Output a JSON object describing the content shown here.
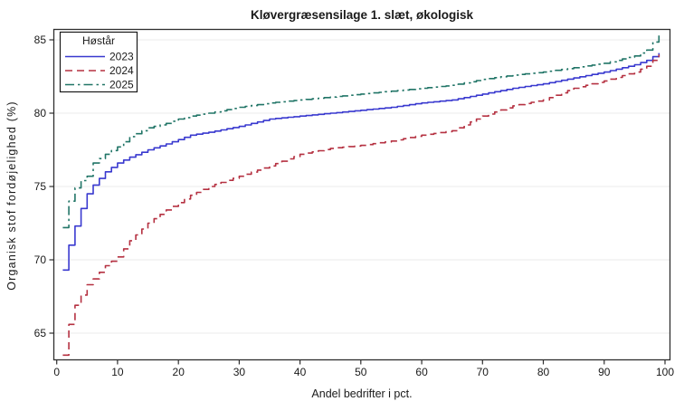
{
  "title": "Kløvergræsensilage 1. slæt, økologisk",
  "chart_data": {
    "type": "line",
    "title": "Kløvergræsensilage 1. slæt, økologisk",
    "xlabel": "Andel bedrifter i pct.",
    "ylabel": "Organisk stof fordøjelighed (%)",
    "xlim": [
      0,
      100
    ],
    "ylim": [
      63.2,
      85.7
    ],
    "x_ticks": [
      0,
      10,
      20,
      30,
      40,
      50,
      60,
      70,
      80,
      90,
      100
    ],
    "y_ticks": [
      65,
      70,
      75,
      80,
      85
    ],
    "grid": "horizontal-only",
    "legend_title": "Høstår",
    "legend_position": "top-left-inside",
    "curve_style": "empirical-percentile-step-curves",
    "x": [
      1,
      2,
      3,
      4,
      5,
      6,
      8,
      10,
      12,
      15,
      18,
      20,
      22,
      25,
      30,
      35,
      40,
      45,
      50,
      55,
      60,
      65,
      70,
      75,
      80,
      85,
      90,
      95,
      97,
      99
    ],
    "series": [
      {
        "name": "2023",
        "color": "#3939cf",
        "line_style": "solid",
        "values": [
          69.3,
          71.0,
          72.3,
          73.5,
          74.5,
          75.1,
          76.0,
          76.6,
          77.0,
          77.5,
          77.9,
          78.2,
          78.5,
          78.7,
          79.1,
          79.6,
          79.8,
          80.0,
          80.2,
          80.4,
          80.7,
          80.9,
          81.3,
          81.7,
          82.0,
          82.4,
          82.8,
          83.3,
          83.6,
          84.1
        ]
      },
      {
        "name": "2024",
        "color": "#b53141",
        "line_style": "dashed",
        "values": [
          63.5,
          65.6,
          66.9,
          67.6,
          68.3,
          68.7,
          69.6,
          70.2,
          71.3,
          72.5,
          73.4,
          73.9,
          74.4,
          75.0,
          75.7,
          76.4,
          77.2,
          77.6,
          77.8,
          78.1,
          78.5,
          78.8,
          79.8,
          80.5,
          80.9,
          81.7,
          82.2,
          82.8,
          83.2,
          84.0
        ]
      },
      {
        "name": "2025",
        "color": "#217567",
        "line_style": "dash-dot",
        "values": [
          72.2,
          74.0,
          74.9,
          75.4,
          75.7,
          76.6,
          77.2,
          77.7,
          78.4,
          79.0,
          79.3,
          79.6,
          79.8,
          80.0,
          80.4,
          80.7,
          80.9,
          81.1,
          81.3,
          81.5,
          81.7,
          81.9,
          82.3,
          82.6,
          82.8,
          83.1,
          83.4,
          83.9,
          84.3,
          85.4
        ]
      }
    ]
  },
  "colors": {
    "background": "#ffffff",
    "frame": "#2e2e2e",
    "grid": "#ebebeb",
    "tick": "#2e2e2e",
    "text": "#1a1a1a",
    "legend_border": "#1a1a1a",
    "legend_fill": "#ffffff"
  }
}
